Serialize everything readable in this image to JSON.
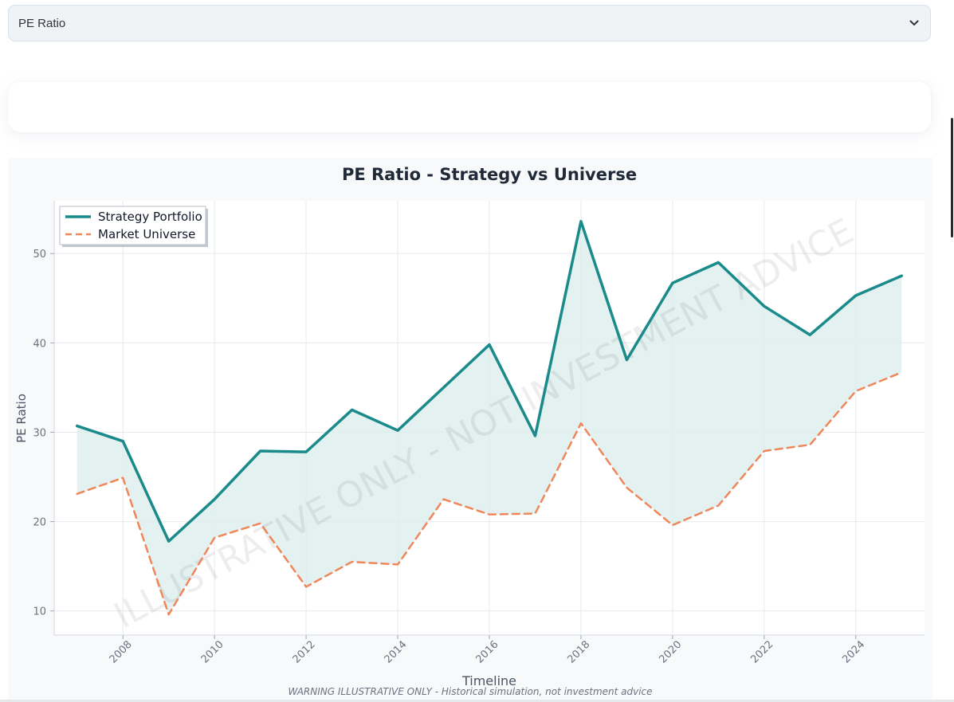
{
  "metric_select": {
    "value": "PE Ratio"
  },
  "icons": {
    "select_chevron": "chevron-down-icon"
  },
  "chart_data": {
    "type": "line",
    "title": "PE Ratio - Strategy vs Universe",
    "xlabel": "Timeline",
    "ylabel": "PE Ratio",
    "x": [
      2007,
      2008,
      2009,
      2010,
      2011,
      2012,
      2013,
      2014,
      2015,
      2016,
      2017,
      2018,
      2019,
      2020,
      2021,
      2022,
      2023,
      2024,
      2025
    ],
    "xticks": [
      "2008",
      "2010",
      "2012",
      "2014",
      "2016",
      "2018",
      "2020",
      "2022",
      "2024"
    ],
    "yticks": [
      "10",
      "20",
      "30",
      "40",
      "50"
    ],
    "xlim": [
      2006.5,
      2025.5
    ],
    "ylim": [
      7.3,
      55.9
    ],
    "series": [
      {
        "name": "Strategy Portfolio",
        "style": "solid",
        "color": "#1a8a8a",
        "values": [
          30.7,
          29.0,
          17.8,
          22.5,
          27.9,
          27.8,
          32.5,
          30.2,
          35.0,
          39.8,
          29.6,
          53.6,
          38.1,
          46.7,
          49.0,
          44.1,
          40.9,
          45.3,
          47.5
        ]
      },
      {
        "name": "Market Universe",
        "style": "dashed",
        "color": "#f0875a",
        "values": [
          23.1,
          24.9,
          9.6,
          18.2,
          19.8,
          12.7,
          15.5,
          15.2,
          22.5,
          20.8,
          20.9,
          31.0,
          23.8,
          19.6,
          21.8,
          27.9,
          28.6,
          34.6,
          36.7
        ]
      }
    ],
    "fill_between": {
      "color": "#dceeec"
    },
    "grid": true,
    "legend_position": "upper-left",
    "watermark": "ILLUSTRATIVE ONLY - NOT INVESTMENT ADVICE",
    "footnote": "WARNING ILLUSTRATIVE ONLY - Historical simulation, not investment advice"
  }
}
